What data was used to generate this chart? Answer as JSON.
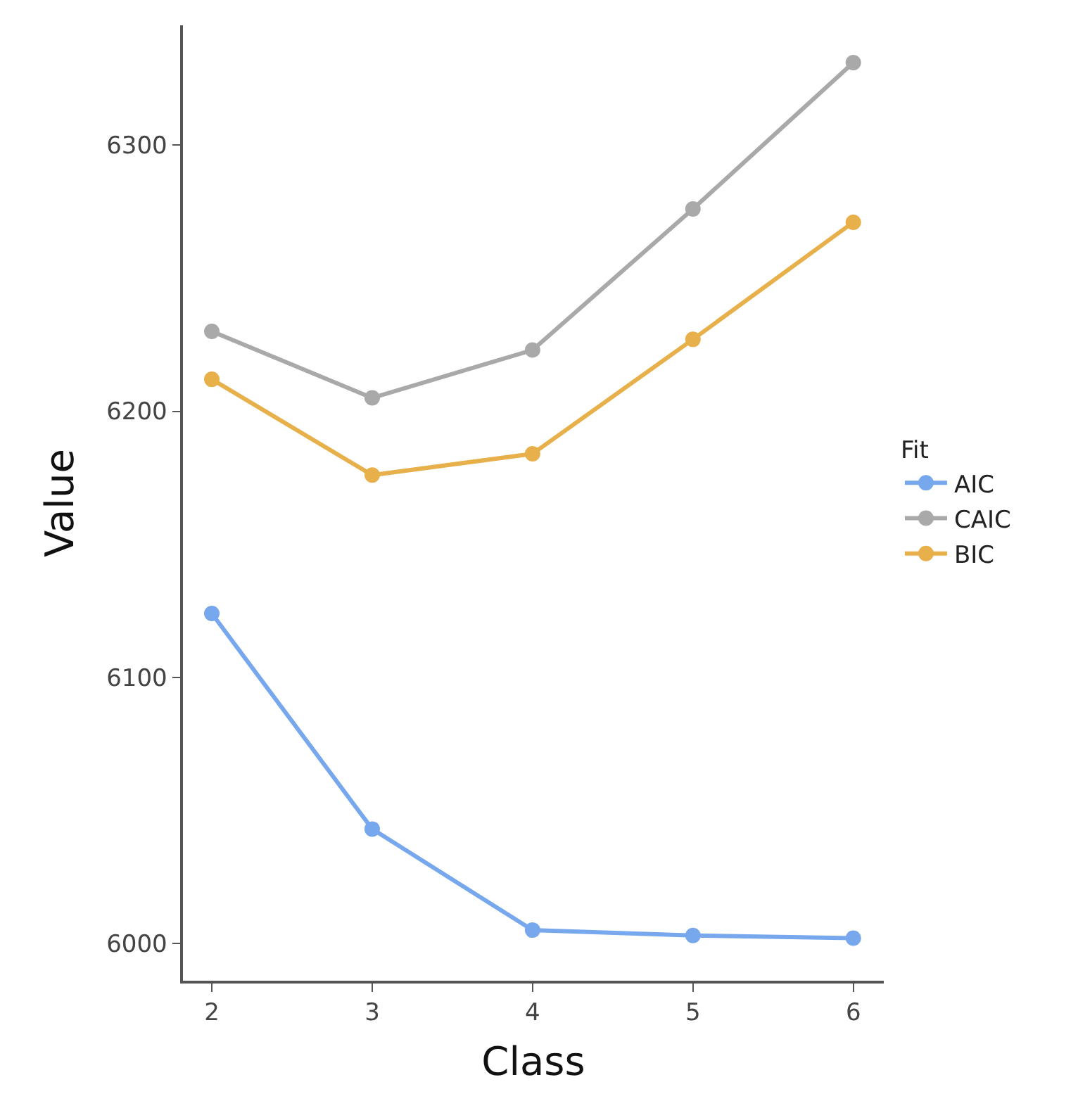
{
  "chart_data": {
    "type": "line",
    "xlabel": "Class",
    "ylabel": "Value",
    "legend_title": "Fit",
    "legend": "right",
    "marker": "circle",
    "line_style": "solid",
    "x": [
      2,
      3,
      4,
      5,
      6
    ],
    "xlim": [
      1.82,
      6.19
    ],
    "xticks": [
      2,
      3,
      4,
      5,
      6
    ],
    "ylim": [
      5986,
      6345
    ],
    "yticks": [
      6000,
      6100,
      6200,
      6300
    ],
    "series": [
      {
        "name": "AIC",
        "color": "#77a7ec",
        "values": [
          6124,
          6043,
          6005,
          6003,
          6002
        ]
      },
      {
        "name": "CAIC",
        "color": "#a9a9a9",
        "values": [
          6230,
          6205,
          6223,
          6276,
          6331
        ]
      },
      {
        "name": "BIC",
        "color": "#e8b04a",
        "values": [
          6212,
          6176,
          6184,
          6227,
          6271
        ]
      }
    ]
  }
}
